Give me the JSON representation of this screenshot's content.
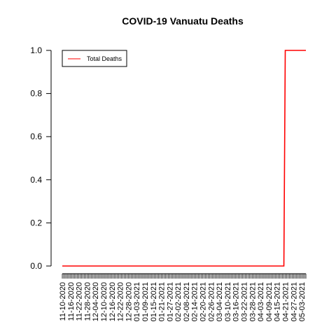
{
  "chart_data": {
    "type": "line",
    "title": "COVID-19 Vanuatu Deaths",
    "xlabel": "",
    "ylabel": "",
    "x_start": "11-10-2020",
    "x_end": "05-06-2021",
    "x_tick_labels": [
      "11-10-2020",
      "11-16-2020",
      "11-22-2020",
      "11-28-2020",
      "12-04-2020",
      "12-10-2020",
      "12-16-2020",
      "12-22-2020",
      "12-28-2020",
      "01-03-2021",
      "01-09-2021",
      "01-15-2021",
      "01-21-2021",
      "01-27-2021",
      "02-02-2021",
      "02-08-2021",
      "02-14-2021",
      "02-20-2021",
      "02-26-2021",
      "03-04-2021",
      "03-10-2021",
      "03-16-2021",
      "03-22-2021",
      "03-28-2021",
      "04-03-2021",
      "04-09-2021",
      "04-15-2021",
      "04-21-2021",
      "04-27-2021",
      "05-03-2021"
    ],
    "y_ticks": [
      "0.0",
      "0.2",
      "0.4",
      "0.6",
      "0.8",
      "1.0"
    ],
    "ylim": [
      0,
      1
    ],
    "legend": {
      "position": "top-left"
    },
    "series": [
      {
        "name": "Total Deaths",
        "color": "#ff0000",
        "points": [
          {
            "x": "11-10-2020",
            "y": 0
          },
          {
            "x": "04-20-2021",
            "y": 0
          },
          {
            "x": "04-21-2021",
            "y": 1
          },
          {
            "x": "05-06-2021",
            "y": 1
          }
        ]
      }
    ]
  }
}
